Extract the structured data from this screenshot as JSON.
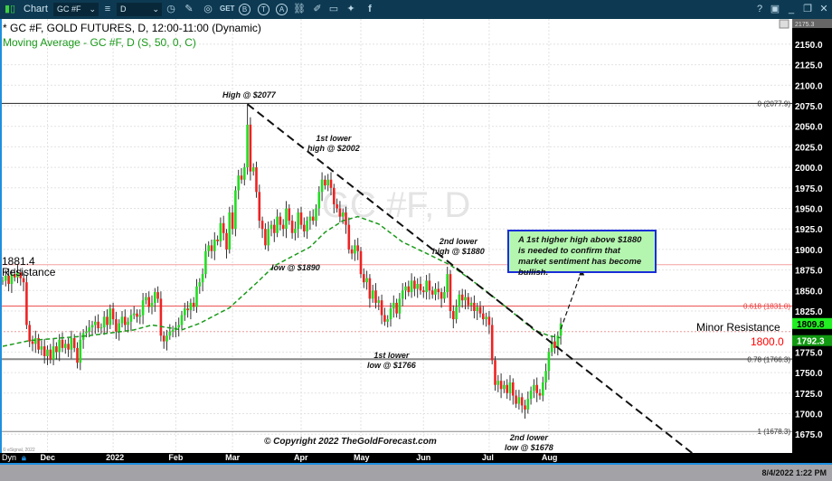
{
  "toolbar": {
    "app_label": "Chart",
    "symbol": "GC #F",
    "interval": "D",
    "icons": [
      "pencil-icon",
      "wave-icon",
      "get-icon",
      "b-circle-icon",
      "t-circle-icon",
      "a-circle-icon",
      "link-icon",
      "edit-icon",
      "comment-icon",
      "twitter-icon",
      "facebook-icon"
    ],
    "get_label": "GET",
    "b_label": "B",
    "t_label": "T",
    "a_label": "A",
    "window_icons": [
      "help-icon",
      "save-icon",
      "minimize-icon",
      "restore-icon",
      "close-icon"
    ]
  },
  "legend": {
    "title": "* GC #F, GOLD FUTURES, D, 12:00-11:00 (Dynamic)",
    "ma": "Moving Average - GC #F, D (S, 50, 0, C)"
  },
  "watermark": "GC #F, D",
  "copyright": "© Copyright 2022 TheGoldForecast.com",
  "esignal": "© eSignal, 2022",
  "status": {
    "datetime": "8/4/2022 1:22 PM",
    "dyn": "Dyn"
  },
  "colors": {
    "up": "#22dd22",
    "down": "#ee2222",
    "ma": "#1a9a1a",
    "header": "#0d3a52",
    "callout_bg": "#b4f6b0",
    "callout_border": "#1a2ed8"
  },
  "chart_data": {
    "type": "candlestick",
    "ylim": [
      1650,
      2175.3
    ],
    "yticks": [
      2150,
      2125,
      2100,
      2075,
      2050,
      2025,
      2000,
      1975,
      1950,
      1925,
      1900,
      1875,
      1850,
      1825,
      1800,
      1775,
      1750,
      1725,
      1700,
      1675
    ],
    "top_label": "2175.3",
    "xlabels": [
      {
        "label": "Dec",
        "bar": 15
      },
      {
        "label": "2022",
        "bar": 37
      },
      {
        "label": "Feb",
        "bar": 58
      },
      {
        "label": "Mar",
        "bar": 77
      },
      {
        "label": "Apr",
        "bar": 100
      },
      {
        "label": "May",
        "bar": 120
      },
      {
        "label": "Jun",
        "bar": 141
      },
      {
        "label": "Jul",
        "bar": 163
      },
      {
        "label": "Aug",
        "bar": 183
      }
    ],
    "closes": [
      1862,
      1868,
      1858,
      1870,
      1866,
      1872,
      1865,
      1860,
      1808,
      1788,
      1785,
      1792,
      1778,
      1782,
      1770,
      1778,
      1766,
      1782,
      1775,
      1790,
      1780,
      1785,
      1778,
      1792,
      1780,
      1762,
      1790,
      1798,
      1800,
      1805,
      1808,
      1812,
      1804,
      1805,
      1818,
      1808,
      1828,
      1815,
      1800,
      1810,
      1818,
      1808,
      1812,
      1820,
      1822,
      1818,
      1820,
      1838,
      1842,
      1830,
      1835,
      1848,
      1840,
      1795,
      1788,
      1795,
      1800,
      1802,
      1805,
      1808,
      1820,
      1828,
      1826,
      1835,
      1830,
      1855,
      1860,
      1870,
      1898,
      1905,
      1898,
      1912,
      1910,
      1932,
      1920,
      1900,
      1945,
      1925,
      1972,
      1990,
      1985,
      2000,
      2052,
      1995,
      2000,
      1970,
      1935,
      1925,
      1905,
      1925,
      1930,
      1920,
      1940,
      1930,
      1925,
      1950,
      1935,
      1920,
      1925,
      1945,
      1930,
      1922,
      1935,
      1940,
      1935,
      1950,
      1970,
      1985,
      1978,
      1985,
      1975,
      1955,
      1950,
      1940,
      1945,
      1930,
      1900,
      1895,
      1905,
      1898,
      1870,
      1860,
      1865,
      1840,
      1850,
      1835,
      1838,
      1820,
      1812,
      1815,
      1828,
      1835,
      1822,
      1840,
      1850,
      1855,
      1848,
      1862,
      1852,
      1858,
      1850,
      1848,
      1862,
      1850,
      1845,
      1852,
      1848,
      1840,
      1848,
      1870,
      1825,
      1815,
      1830,
      1845,
      1838,
      1842,
      1832,
      1835,
      1825,
      1830,
      1822,
      1815,
      1818,
      1808,
      1765,
      1735,
      1740,
      1730,
      1735,
      1725,
      1738,
      1722,
      1712,
      1720,
      1710,
      1705,
      1718,
      1728,
      1735,
      1725,
      1722,
      1738,
      1752,
      1775,
      1788,
      1780,
      1795,
      1809.8
    ],
    "ma_series": {
      "name": "Moving Average (S, 50, 0, C)",
      "points": [
        [
          0,
          1782
        ],
        [
          9,
          1789
        ],
        [
          29,
          1795
        ],
        [
          44,
          1802
        ],
        [
          50,
          1808
        ],
        [
          55,
          1805
        ],
        [
          60,
          1802
        ],
        [
          66,
          1810
        ],
        [
          76,
          1829
        ],
        [
          85,
          1859
        ],
        [
          91,
          1880
        ],
        [
          103,
          1903
        ],
        [
          108,
          1921
        ],
        [
          114,
          1935
        ],
        [
          119,
          1940
        ],
        [
          126,
          1931
        ],
        [
          134,
          1909
        ],
        [
          141,
          1897
        ],
        [
          150,
          1881
        ],
        [
          160,
          1855
        ],
        [
          170,
          1826
        ],
        [
          178,
          1802
        ],
        [
          183,
          1795
        ],
        [
          187,
          1792.3
        ]
      ]
    },
    "last_price": "1809.8",
    "ma_last": "1792.3",
    "hlines": [
      {
        "price": 2077.9,
        "label": "0 (2077.9)",
        "color": "#222",
        "style": "solid"
      },
      {
        "price": 1881.4,
        "color": "#f3a0a0",
        "style": "solid"
      },
      {
        "price": 1831.0,
        "label": "0.618 (1831.0)",
        "color": "#ee5555",
        "style": "solid"
      },
      {
        "price": 1800.0,
        "color": "#f3a0a0",
        "style": "dotted"
      },
      {
        "price": 1766.3,
        "label": "0.78 (1766.3)",
        "color": "#888",
        "style": "thick"
      },
      {
        "price": 1678.3,
        "label": "1 (1678.3)",
        "color": "#888",
        "style": "solid"
      }
    ],
    "trendline": {
      "from": [
        82,
        2077
      ],
      "to": [
        231,
        1652
      ]
    },
    "arrow": {
      "from": [
        187,
        1803
      ],
      "to": [
        194,
        1874
      ]
    },
    "annotations": {
      "high": "High @ $2077",
      "lower_high1": [
        "1st lower",
        "high @ $2002"
      ],
      "low1890": "low @ $1890",
      "lower_high2": [
        "2nd  lower",
        "high @ $1880"
      ],
      "lower_low1": [
        "1st lower",
        "low @ $1766"
      ],
      "lower_low2": [
        "2nd lower",
        "low @ $1678"
      ],
      "resistance": [
        "1881.4",
        "Resistance"
      ],
      "minor_resistance": "Minor Resistance",
      "minor_value": "1800.0",
      "callout": "A 1st higher high above  $1880 is needed to confirm that market sentiment has become bullish."
    }
  }
}
